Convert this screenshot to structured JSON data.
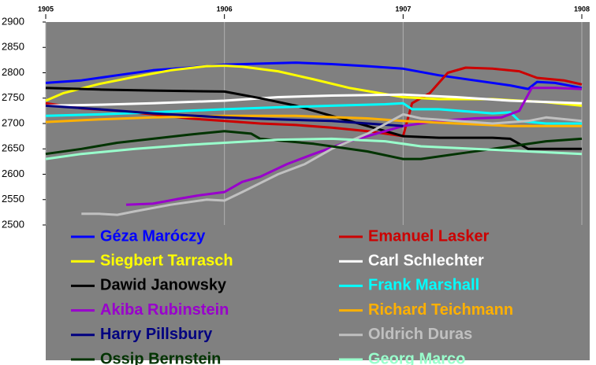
{
  "chart_data": {
    "type": "line",
    "xlim": [
      1905,
      1908
    ],
    "xticks": [
      1905,
      1906,
      1907,
      1908
    ],
    "ylim": [
      2500,
      2900
    ],
    "yticks": [
      2500,
      2550,
      2600,
      2650,
      2700,
      2750,
      2800,
      2850,
      2900
    ],
    "grid": true,
    "legend": "bottom",
    "series": [
      {
        "name": "Géza Maróczy",
        "color": "#0000ff",
        "x": [
          1905.0,
          1905.2,
          1905.4,
          1905.6,
          1905.8,
          1906.0,
          1906.2,
          1906.4,
          1906.6,
          1906.8,
          1907.0,
          1907.2,
          1907.4,
          1907.6,
          1907.7,
          1907.75,
          1907.85,
          1908.0
        ],
        "values": [
          2780,
          2785,
          2795,
          2805,
          2810,
          2816,
          2818,
          2820,
          2817,
          2813,
          2808,
          2795,
          2785,
          2775,
          2768,
          2782,
          2780,
          2770
        ]
      },
      {
        "name": "Emanuel Lasker",
        "color": "#cc0000",
        "x": [
          1905.0,
          1905.2,
          1905.4,
          1905.6,
          1905.8,
          1906.0,
          1906.2,
          1906.4,
          1906.6,
          1906.8,
          1907.0,
          1907.05,
          1907.15,
          1907.25,
          1907.35,
          1907.5,
          1907.65,
          1907.75,
          1907.9,
          1908.0
        ],
        "values": [
          2740,
          2730,
          2725,
          2718,
          2710,
          2705,
          2700,
          2697,
          2692,
          2685,
          2675,
          2740,
          2760,
          2800,
          2810,
          2808,
          2803,
          2790,
          2785,
          2777
        ]
      },
      {
        "name": "Siegbert Tarrasch",
        "color": "#ffff00",
        "x": [
          1905.0,
          1905.1,
          1905.3,
          1905.5,
          1905.7,
          1905.9,
          1906.0,
          1906.1,
          1906.3,
          1906.5,
          1906.7,
          1906.9,
          1907.0,
          1907.2,
          1907.5,
          1907.8,
          1908.0
        ],
        "values": [
          2745,
          2760,
          2778,
          2792,
          2805,
          2813,
          2814,
          2812,
          2803,
          2787,
          2770,
          2758,
          2752,
          2748,
          2748,
          2742,
          2735
        ]
      },
      {
        "name": "Carl Schlechter",
        "color": "#ffffff",
        "x": [
          1905.0,
          1905.3,
          1905.6,
          1906.0,
          1906.3,
          1906.6,
          1907.0,
          1907.3,
          1907.6,
          1908.0
        ],
        "values": [
          2735,
          2737,
          2740,
          2745,
          2752,
          2755,
          2757,
          2752,
          2745,
          2740
        ]
      },
      {
        "name": "Dawid Janowsky",
        "color": "#000000",
        "x": [
          1905.0,
          1905.3,
          1905.6,
          1906.0,
          1906.2,
          1906.4,
          1906.6,
          1906.8,
          1907.0,
          1907.2,
          1907.5,
          1907.6,
          1907.7,
          1908.0
        ],
        "values": [
          2770,
          2767,
          2765,
          2763,
          2750,
          2735,
          2715,
          2695,
          2675,
          2672,
          2672,
          2670,
          2650,
          2650
        ]
      },
      {
        "name": "Frank Marshall",
        "color": "#00ffff",
        "x": [
          1905.0,
          1905.3,
          1905.6,
          1906.0,
          1906.3,
          1906.6,
          1906.9,
          1907.0,
          1907.05,
          1907.2,
          1907.5,
          1907.6,
          1907.65,
          1907.8,
          1908.0
        ],
        "values": [
          2715,
          2718,
          2722,
          2728,
          2732,
          2735,
          2738,
          2740,
          2728,
          2728,
          2720,
          2722,
          2705,
          2700,
          2700
        ]
      },
      {
        "name": "Akiba Rubinstein",
        "color": "#9900cc",
        "x": [
          1905.45,
          1905.6,
          1905.75,
          1905.85,
          1906.0,
          1906.1,
          1906.2,
          1906.35,
          1906.5,
          1906.7,
          1906.9,
          1907.0,
          1907.2,
          1907.4,
          1907.55,
          1907.65,
          1907.72,
          1907.85,
          1908.0
        ],
        "values": [
          2540,
          2542,
          2552,
          2558,
          2565,
          2585,
          2595,
          2620,
          2640,
          2665,
          2685,
          2695,
          2705,
          2710,
          2712,
          2725,
          2770,
          2770,
          2768
        ]
      },
      {
        "name": "Richard Teichmann",
        "color": "#ffb000",
        "x": [
          1905.0,
          1905.3,
          1905.6,
          1906.0,
          1906.4,
          1906.8,
          1907.0,
          1907.3,
          1907.6,
          1908.0
        ],
        "values": [
          2703,
          2708,
          2712,
          2715,
          2715,
          2710,
          2705,
          2700,
          2695,
          2695
        ]
      },
      {
        "name": "Harry Pillsbury",
        "color": "#000080",
        "x": [
          1905.0,
          1905.3,
          1905.6,
          1906.0,
          1906.3,
          1906.6,
          1906.8,
          1907.0
        ],
        "values": [
          2735,
          2728,
          2720,
          2712,
          2708,
          2705,
          2700,
          2695
        ]
      },
      {
        "name": "Oldrich Duras",
        "color": "#c0c0c0",
        "x": [
          1905.2,
          1905.3,
          1905.4,
          1905.5,
          1905.7,
          1905.9,
          1906.0,
          1906.1,
          1906.3,
          1906.45,
          1906.6,
          1906.8,
          1907.0,
          1907.1,
          1907.3,
          1907.5,
          1907.7,
          1907.8,
          1908.0
        ],
        "values": [
          2522,
          2522,
          2520,
          2527,
          2540,
          2550,
          2548,
          2565,
          2600,
          2620,
          2650,
          2680,
          2718,
          2710,
          2705,
          2700,
          2705,
          2712,
          2705
        ]
      },
      {
        "name": "Ossip Bernstein",
        "color": "#003300",
        "x": [
          1905.0,
          1905.2,
          1905.4,
          1905.6,
          1905.8,
          1906.0,
          1906.15,
          1906.2,
          1906.5,
          1906.8,
          1907.0,
          1907.1,
          1907.3,
          1907.5,
          1907.8,
          1908.0
        ],
        "values": [
          2640,
          2650,
          2662,
          2670,
          2678,
          2685,
          2680,
          2670,
          2660,
          2645,
          2630,
          2630,
          2640,
          2650,
          2665,
          2670
        ]
      },
      {
        "name": "Georg Marco",
        "color": "#99ffcc",
        "x": [
          1905.0,
          1905.2,
          1905.5,
          1905.8,
          1906.0,
          1906.3,
          1906.6,
          1906.9,
          1907.1,
          1907.4,
          1907.7,
          1908.0
        ],
        "values": [
          2630,
          2640,
          2650,
          2658,
          2662,
          2668,
          2670,
          2665,
          2655,
          2650,
          2645,
          2640
        ]
      }
    ]
  }
}
